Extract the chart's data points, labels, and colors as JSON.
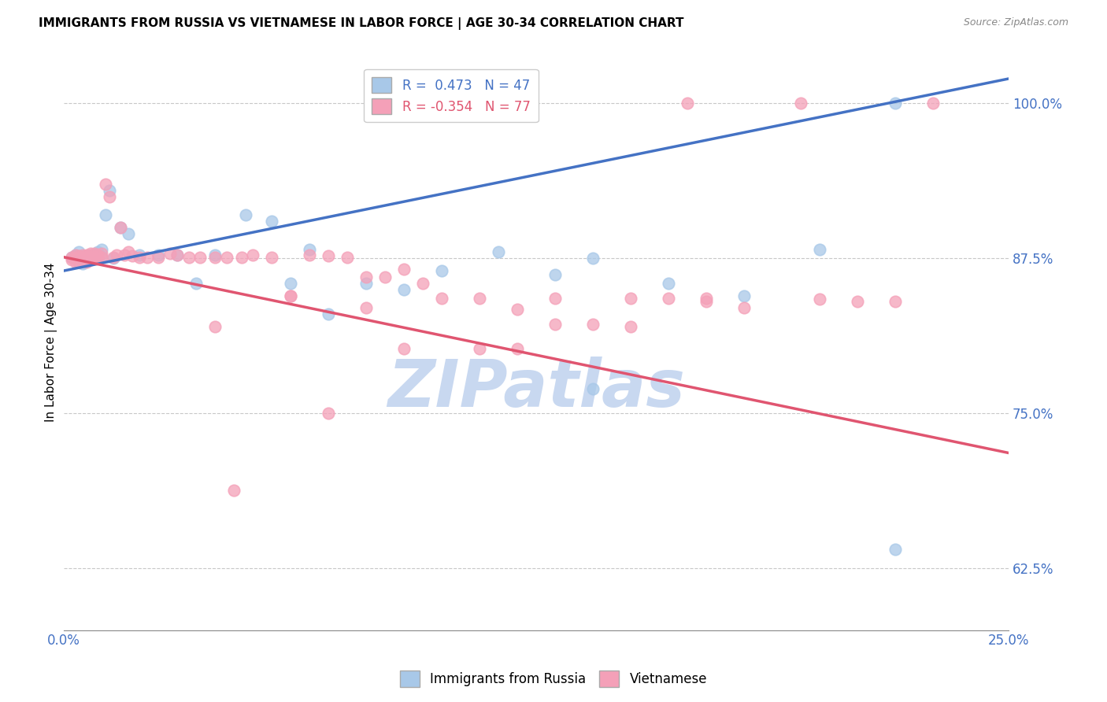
{
  "title": "IMMIGRANTS FROM RUSSIA VS VIETNAMESE IN LABOR FORCE | AGE 30-34 CORRELATION CHART",
  "source": "Source: ZipAtlas.com",
  "ylabel": "In Labor Force | Age 30-34",
  "xlim": [
    0.0,
    0.25
  ],
  "ylim": [
    0.575,
    1.04
  ],
  "xticks": [
    0.0,
    0.05,
    0.1,
    0.15,
    0.2,
    0.25
  ],
  "xticklabels": [
    "0.0%",
    "",
    "",
    "",
    "",
    "25.0%"
  ],
  "yticks": [
    0.625,
    0.75,
    0.875,
    1.0
  ],
  "yticklabels": [
    "62.5%",
    "75.0%",
    "87.5%",
    "100.0%"
  ],
  "russia_R": 0.473,
  "russia_N": 47,
  "viet_R": -0.354,
  "viet_N": 77,
  "russia_color": "#a8c8e8",
  "viet_color": "#f4a0b8",
  "russia_line_color": "#4472c4",
  "viet_line_color": "#e05570",
  "russia_line_x0": 0.0,
  "russia_line_y0": 0.865,
  "russia_line_x1": 0.25,
  "russia_line_y1": 1.02,
  "viet_line_x0": 0.0,
  "viet_line_y0": 0.876,
  "viet_line_x1": 0.25,
  "viet_line_y1": 0.718,
  "russia_scatter_x": [
    0.002,
    0.003,
    0.003,
    0.004,
    0.004,
    0.004,
    0.005,
    0.005,
    0.005,
    0.006,
    0.006,
    0.006,
    0.007,
    0.007,
    0.008,
    0.008,
    0.009,
    0.009,
    0.01,
    0.01,
    0.011,
    0.012,
    0.013,
    0.015,
    0.017,
    0.02,
    0.025,
    0.03,
    0.035,
    0.04,
    0.048,
    0.055,
    0.06,
    0.065,
    0.07,
    0.08,
    0.09,
    0.1,
    0.115,
    0.13,
    0.14,
    0.16,
    0.18,
    0.2,
    0.22,
    0.14,
    0.22
  ],
  "russia_scatter_y": [
    0.876,
    0.878,
    0.875,
    0.88,
    0.876,
    0.872,
    0.875,
    0.873,
    0.871,
    0.876,
    0.875,
    0.873,
    0.878,
    0.875,
    0.878,
    0.876,
    0.88,
    0.875,
    0.882,
    0.876,
    0.91,
    0.93,
    0.875,
    0.9,
    0.895,
    0.878,
    0.878,
    0.878,
    0.855,
    0.878,
    0.91,
    0.905,
    0.855,
    0.882,
    0.83,
    0.855,
    0.85,
    0.865,
    0.88,
    0.862,
    0.875,
    0.855,
    0.845,
    0.882,
    1.0,
    0.77,
    0.64
  ],
  "viet_scatter_x": [
    0.002,
    0.002,
    0.003,
    0.003,
    0.003,
    0.004,
    0.004,
    0.004,
    0.005,
    0.005,
    0.005,
    0.006,
    0.006,
    0.006,
    0.007,
    0.007,
    0.007,
    0.008,
    0.008,
    0.009,
    0.009,
    0.01,
    0.01,
    0.011,
    0.012,
    0.013,
    0.014,
    0.015,
    0.016,
    0.017,
    0.018,
    0.02,
    0.022,
    0.025,
    0.028,
    0.03,
    0.033,
    0.036,
    0.04,
    0.043,
    0.047,
    0.05,
    0.055,
    0.06,
    0.065,
    0.07,
    0.075,
    0.08,
    0.085,
    0.09,
    0.095,
    0.1,
    0.11,
    0.12,
    0.13,
    0.14,
    0.15,
    0.16,
    0.17,
    0.18,
    0.09,
    0.11,
    0.13,
    0.15,
    0.17,
    0.04,
    0.06,
    0.08,
    0.12,
    0.2,
    0.21,
    0.22,
    0.23,
    0.195,
    0.165,
    0.07,
    0.045
  ],
  "viet_scatter_y": [
    0.876,
    0.874,
    0.878,
    0.876,
    0.872,
    0.877,
    0.875,
    0.872,
    0.878,
    0.876,
    0.873,
    0.878,
    0.876,
    0.872,
    0.879,
    0.877,
    0.874,
    0.879,
    0.876,
    0.878,
    0.875,
    0.879,
    0.876,
    0.935,
    0.925,
    0.876,
    0.878,
    0.9,
    0.878,
    0.88,
    0.877,
    0.876,
    0.876,
    0.876,
    0.879,
    0.878,
    0.876,
    0.876,
    0.876,
    0.876,
    0.876,
    0.878,
    0.876,
    0.845,
    0.878,
    0.877,
    0.876,
    0.86,
    0.86,
    0.866,
    0.855,
    0.843,
    0.843,
    0.834,
    0.843,
    0.822,
    0.843,
    0.843,
    0.843,
    0.835,
    0.802,
    0.802,
    0.822,
    0.82,
    0.84,
    0.82,
    0.845,
    0.835,
    0.802,
    0.842,
    0.84,
    0.84,
    1.0,
    1.0,
    1.0,
    0.75,
    0.688
  ],
  "watermark_text": "ZIPatlas",
  "watermark_color": "#c8d8f0",
  "watermark_fontsize": 60
}
